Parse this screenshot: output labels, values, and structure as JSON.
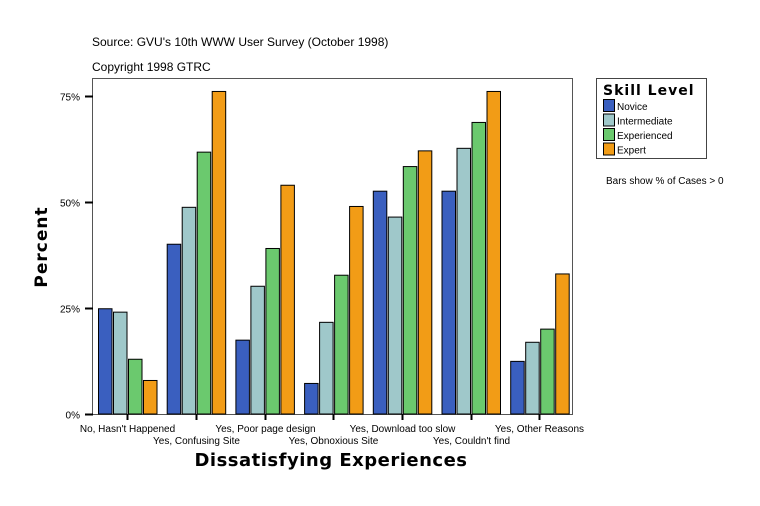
{
  "chart_data": {
    "type": "bar",
    "source": "Source: GVU's 10th WWW User Survey (October 1998)",
    "copyright": "Copyright 1998 GTRC",
    "xlabel": "Dissatisfying Experiences",
    "ylabel": "Percent",
    "ylim": [
      0,
      75
    ],
    "yticks": [
      0,
      25,
      50,
      75
    ],
    "ytick_labels": [
      "0%",
      "25%",
      "50%",
      "75%"
    ],
    "grid": false,
    "legend": {
      "title": "Skill Level",
      "placement": "right"
    },
    "note": "Bars show % of Cases > 0",
    "categories": [
      "No, Hasn't Happened",
      "Yes, Confusing Site",
      "Yes, Poor page design",
      "Yes, Obnoxious Site",
      "Yes, Download too slow",
      "Yes, Couldn't find",
      "Yes, Other Reasons"
    ],
    "series": [
      {
        "name": "Novice",
        "color": "#3a5fbf",
        "values": [
          24.8,
          40.0,
          17.4,
          7.2,
          52.5,
          52.5,
          12.4
        ]
      },
      {
        "name": "Intermediate",
        "color": "#9fc8ca",
        "values": [
          24.0,
          48.7,
          30.1,
          21.6,
          46.4,
          62.6,
          16.9
        ]
      },
      {
        "name": "Experienced",
        "color": "#6bc96e",
        "values": [
          12.9,
          61.7,
          39.0,
          32.7,
          58.3,
          68.7,
          20.0
        ]
      },
      {
        "name": "Expert",
        "color": "#f29c16",
        "values": [
          7.9,
          76.0,
          53.9,
          48.9,
          62.0,
          76.0,
          33.0
        ]
      }
    ]
  }
}
